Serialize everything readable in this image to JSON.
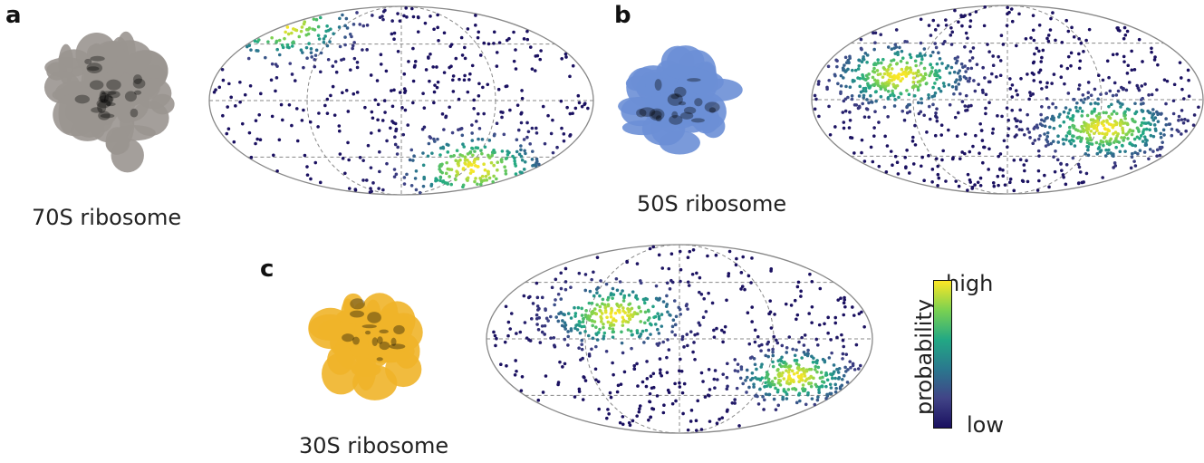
{
  "panels": [
    {
      "letter": "a",
      "caption": "70S ribosome",
      "molecule_color": "#9a9590"
    },
    {
      "letter": "b",
      "caption": "50S ribosome",
      "molecule_color": "#6b8fd6"
    },
    {
      "letter": "c",
      "caption": "30S ribosome",
      "molecule_color": "#f0b429"
    }
  ],
  "colorbar": {
    "label": "probability",
    "high": "high",
    "low": "low",
    "colors": [
      "#fde725",
      "#7ad151",
      "#22a884",
      "#2a788e",
      "#414487",
      "#1a1060"
    ]
  }
}
